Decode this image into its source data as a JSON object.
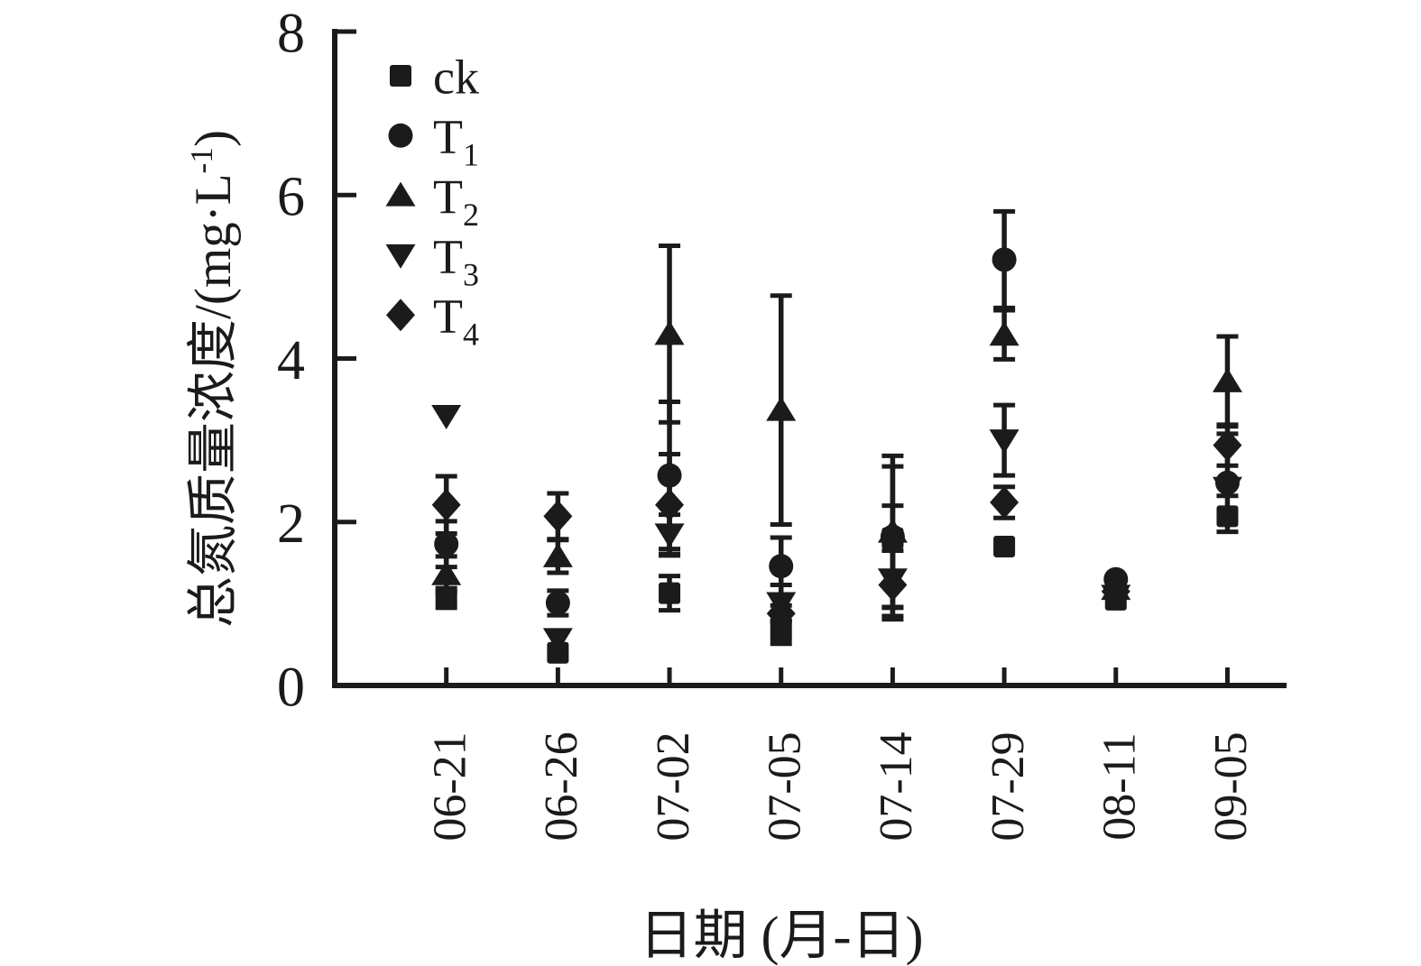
{
  "figure": {
    "background": "#ffffff",
    "ink_color": "#1b1b1b"
  },
  "chart_data": {
    "type": "scatter",
    "title": "",
    "xlabel": "日期 (月-日)",
    "ylabel": "总氮质量浓度/(mg·L⁻¹)",
    "ylabel_parts": {
      "pre": "总氮质量浓度/(mg·L",
      "sup": "-1",
      "post": ")"
    },
    "ylim": [
      0,
      8
    ],
    "yticks": [
      0,
      2,
      4,
      6,
      8
    ],
    "grid": false,
    "legend_position": "top-left-inside",
    "categories": [
      "06-21",
      "06-26",
      "07-02",
      "07-05",
      "07-14",
      "07-29",
      "08-11",
      "09-05"
    ],
    "series": [
      {
        "name": "ck",
        "label_base": "ck",
        "label_sub": "",
        "marker": "square",
        "values": [
          1.07,
          0.4,
          1.13,
          0.65,
          1.8,
          1.7,
          1.05,
          2.07
        ],
        "errors": [
          0.12,
          0.0,
          0.21,
          0.14,
          0.4,
          0.0,
          0.0,
          0.0
        ]
      },
      {
        "name": "T1",
        "label_base": "T",
        "label_sub": "1",
        "marker": "circle",
        "values": [
          1.73,
          1.01,
          2.57,
          1.46,
          1.82,
          5.21,
          1.3,
          2.48
        ],
        "errors": [
          0.28,
          0.15,
          0.9,
          0.35,
          0.86,
          0.59,
          0.0,
          0.6
        ]
      },
      {
        "name": "T2",
        "label_base": "T",
        "label_sub": "2",
        "marker": "triangle-up",
        "values": [
          1.36,
          1.58,
          4.3,
          3.37,
          1.88,
          4.29,
          1.18,
          3.72
        ],
        "errors": [
          0.22,
          0.2,
          1.08,
          1.4,
          0.93,
          0.3,
          0.0,
          0.55
        ]
      },
      {
        "name": "T3",
        "label_base": "T",
        "label_sub": "3",
        "marker": "triangle-down",
        "values": [
          3.3,
          0.57,
          1.85,
          1.01,
          1.3,
          3.0,
          1.1,
          2.42
        ],
        "errors": [
          0.0,
          0.0,
          0.24,
          0.22,
          0.45,
          0.43,
          0.0,
          0.1
        ]
      },
      {
        "name": "T4",
        "label_base": "T",
        "label_sub": "4",
        "marker": "diamond",
        "values": [
          2.21,
          2.07,
          2.21,
          0.88,
          1.23,
          2.24,
          1.15,
          2.94
        ],
        "errors": [
          0.35,
          0.28,
          0.62,
          0.1,
          0.42,
          0.19,
          0.0,
          0.25
        ]
      }
    ]
  }
}
